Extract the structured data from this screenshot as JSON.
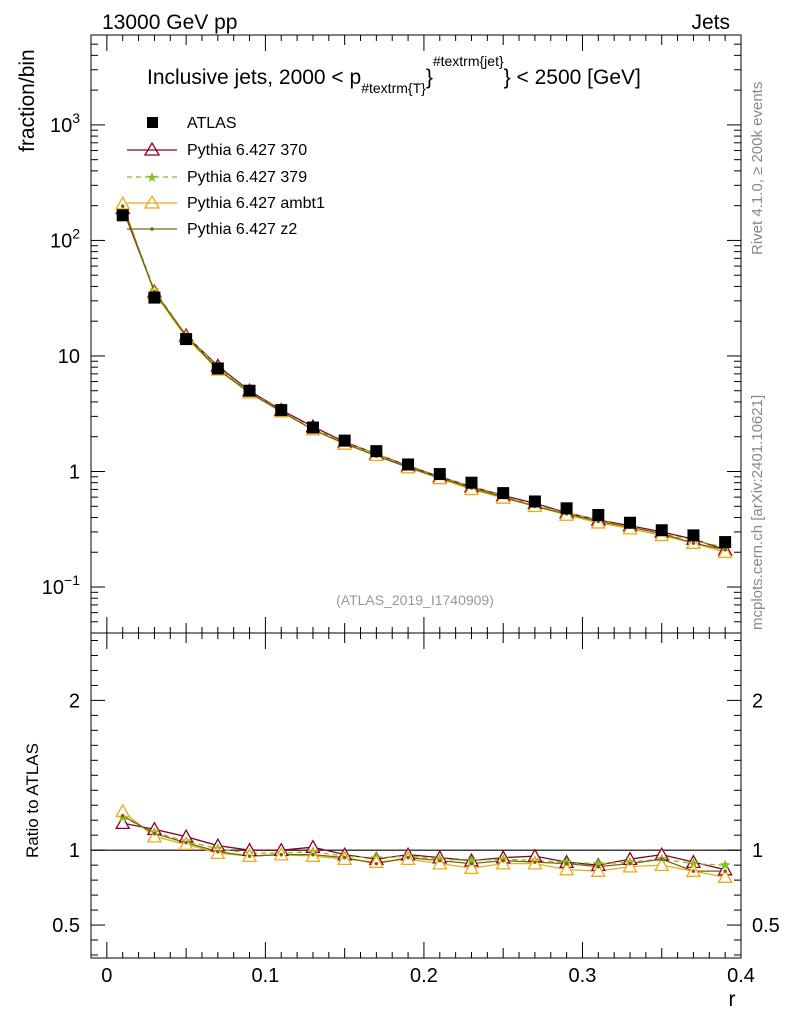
{
  "header": {
    "left": "13000 GeV pp",
    "right": "Jets"
  },
  "plot_title": "Inclusive jets, 2000 < p",
  "plot_title_sub": "#textrm{T}",
  "plot_title_sup": "#textrm{jet}",
  "plot_title_end": "} < 2500 [GeV]",
  "side_text": {
    "rivet": "Rivet 4.1.0, ≥ 200k events",
    "mcplots": "mcplots.cern.ch [arXiv:2401.10621]"
  },
  "analysis_ref": "(ATLAS_2019_I1740909)",
  "legend": [
    {
      "label": "ATLAS"
    },
    {
      "label": "Pythia 6.427 370"
    },
    {
      "label": "Pythia 6.427 379"
    },
    {
      "label": "Pythia 6.427 ambt1"
    },
    {
      "label": "Pythia 6.427 z2"
    }
  ],
  "colors": {
    "data": "#000000",
    "p370": "#8b0020",
    "p379": "#80c020",
    "ambt1": "#f0a818",
    "z2": "#6b6b10"
  },
  "chart_data": [
    {
      "type": "scatter",
      "scale": "log",
      "ylabel": "fraction/bin",
      "xlim": [
        -0.01,
        0.4
      ],
      "ylim": [
        0.04,
        6000
      ],
      "ytick_labels": [
        {
          "base": "10",
          "exp": "3"
        },
        {
          "base": "10",
          "exp": "2"
        },
        {
          "text": "10"
        },
        {
          "text": "1"
        },
        {
          "base": "10",
          "exp": "−1"
        }
      ],
      "x": [
        0.01,
        0.03,
        0.05,
        0.07,
        0.09,
        0.11,
        0.13,
        0.15,
        0.17,
        0.19,
        0.21,
        0.23,
        0.25,
        0.27,
        0.29,
        0.31,
        0.33,
        0.35,
        0.37,
        0.39
      ],
      "data": [
        165,
        32,
        14,
        7.8,
        5.0,
        3.4,
        2.4,
        1.85,
        1.5,
        1.15,
        0.95,
        0.8,
        0.65,
        0.55,
        0.48,
        0.42,
        0.36,
        0.31,
        0.28,
        0.245
      ],
      "series": [
        {
          "name": "Pythia 6.427 370",
          "key": "p370",
          "marker": "triangle-open",
          "dash": "none",
          "values": [
            190,
            36,
            15,
            8.2,
            5.0,
            3.4,
            2.45,
            1.8,
            1.42,
            1.12,
            0.9,
            0.74,
            0.62,
            0.53,
            0.44,
            0.38,
            0.34,
            0.3,
            0.26,
            0.21
          ]
        },
        {
          "name": "Pythia 6.427 379",
          "key": "p379",
          "marker": "star",
          "dash": "5,4",
          "values": [
            200,
            37,
            15.2,
            8.0,
            4.9,
            3.35,
            2.35,
            1.78,
            1.42,
            1.1,
            0.9,
            0.74,
            0.61,
            0.51,
            0.44,
            0.38,
            0.33,
            0.29,
            0.255,
            0.22
          ]
        },
        {
          "name": "Pythia 6.427 ambt1",
          "key": "ambt1",
          "marker": "triangle-open",
          "dash": "none",
          "values": [
            208,
            35,
            14.5,
            7.6,
            4.8,
            3.3,
            2.3,
            1.73,
            1.38,
            1.08,
            0.87,
            0.7,
            0.59,
            0.5,
            0.42,
            0.36,
            0.32,
            0.28,
            0.24,
            0.2
          ]
        },
        {
          "name": "Pythia 6.427 z2",
          "key": "z2",
          "marker": "dot",
          "dash": "none",
          "values": [
            198,
            36,
            14.8,
            7.7,
            4.8,
            3.3,
            2.3,
            1.75,
            1.36,
            1.09,
            0.88,
            0.72,
            0.6,
            0.5,
            0.43,
            0.37,
            0.33,
            0.29,
            0.24,
            0.21
          ]
        }
      ]
    },
    {
      "type": "line",
      "scale": "linear",
      "ylabel": "Ratio to ATLAS",
      "xlabel": "r",
      "xlim": [
        -0.01,
        0.4
      ],
      "ylim": [
        0.28,
        2.45
      ],
      "xtick_labels": [
        "0",
        "0.1",
        "0.2",
        "0.3",
        "0.4"
      ],
      "ytick_labels": [
        "0.5",
        "1",
        "2"
      ],
      "reference": 1,
      "x": [
        0.01,
        0.03,
        0.05,
        0.07,
        0.09,
        0.11,
        0.13,
        0.15,
        0.17,
        0.19,
        0.21,
        0.23,
        0.25,
        0.27,
        0.29,
        0.31,
        0.33,
        0.35,
        0.37,
        0.39
      ],
      "series": [
        {
          "name": "Pythia 6.427 370",
          "key": "p370",
          "marker": "triangle-open",
          "dash": "none",
          "values": [
            1.18,
            1.14,
            1.09,
            1.03,
            1.0,
            1.0,
            1.02,
            0.97,
            0.94,
            0.97,
            0.95,
            0.93,
            0.95,
            0.96,
            0.92,
            0.9,
            0.94,
            0.97,
            0.92,
            0.87
          ]
        },
        {
          "name": "Pythia 6.427 379",
          "key": "p379",
          "marker": "star",
          "dash": "5,4",
          "values": [
            1.22,
            1.12,
            1.06,
            1.01,
            0.98,
            0.98,
            0.99,
            0.96,
            0.95,
            0.96,
            0.94,
            0.93,
            0.94,
            0.93,
            0.92,
            0.91,
            0.92,
            0.94,
            0.91,
            0.9
          ]
        },
        {
          "name": "Pythia 6.427 ambt1",
          "key": "ambt1",
          "marker": "triangle-open",
          "dash": "none",
          "values": [
            1.26,
            1.09,
            1.04,
            0.98,
            0.96,
            0.97,
            0.96,
            0.94,
            0.92,
            0.94,
            0.91,
            0.88,
            0.91,
            0.91,
            0.87,
            0.86,
            0.89,
            0.9,
            0.86,
            0.82
          ]
        },
        {
          "name": "Pythia 6.427 z2",
          "key": "z2",
          "marker": "dot",
          "dash": "none",
          "values": [
            1.23,
            1.11,
            1.05,
            0.99,
            0.96,
            0.97,
            0.97,
            0.95,
            0.91,
            0.95,
            0.93,
            0.91,
            0.93,
            0.92,
            0.91,
            0.89,
            0.91,
            0.94,
            0.86,
            0.86
          ]
        }
      ]
    }
  ]
}
